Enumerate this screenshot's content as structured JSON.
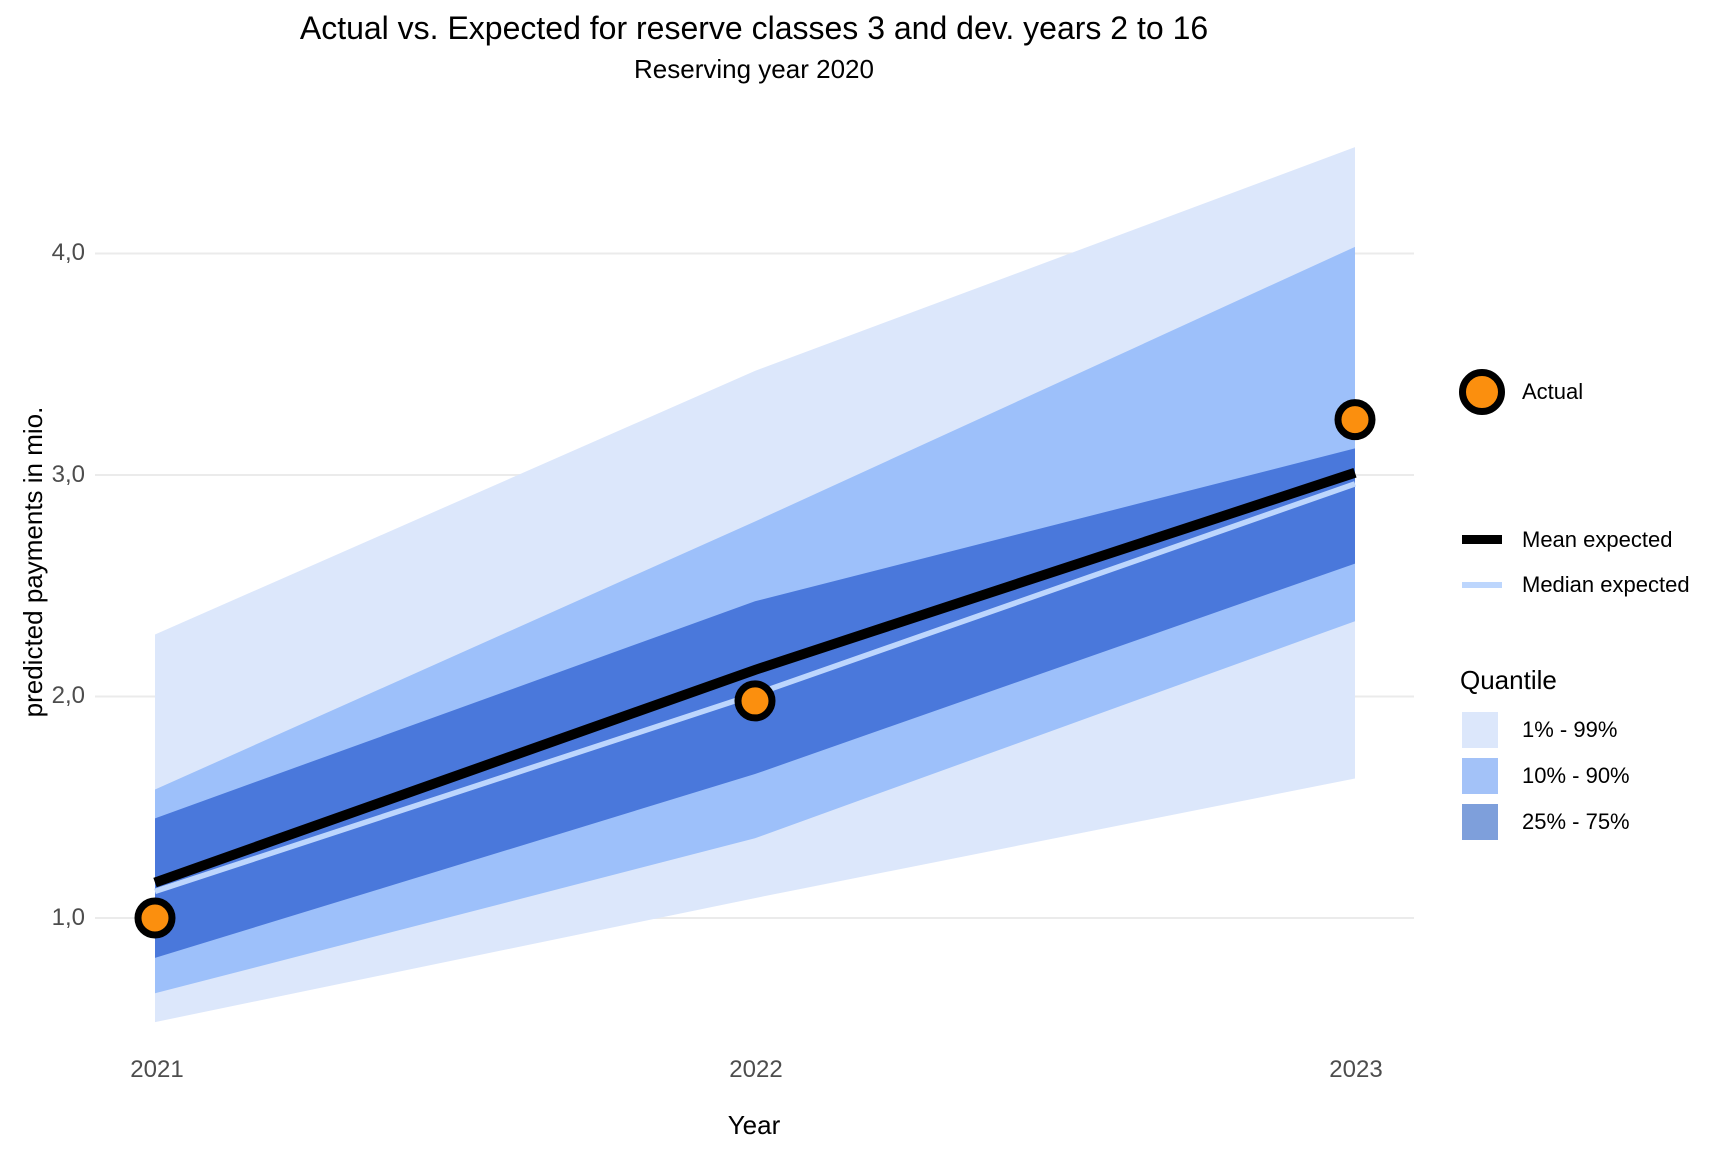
{
  "title": "Actual vs. Expected for reserve classes 3 and dev. years 2 to 16",
  "subtitle": "Reserving year 2020",
  "chart_data": {
    "type": "area",
    "title": "Actual vs. Expected for reserve classes 3 and dev. years 2 to 16",
    "subtitle": "Reserving year 2020",
    "xlabel": "Year",
    "ylabel": "predicted payments in mio.",
    "x": [
      2021,
      2022,
      2023
    ],
    "x_tick_labels": [
      "2021",
      "2022",
      "2023"
    ],
    "y_ticks": [
      1.0,
      2.0,
      3.0,
      4.0
    ],
    "y_tick_labels": [
      "1,0",
      "2,0",
      "3,0",
      "4,0"
    ],
    "ylim": [
      0.45,
      4.55
    ],
    "grid": "horizontal-only",
    "legend_position": "right",
    "bands": [
      {
        "label": "1% - 99%",
        "lower": [
          0.53,
          1.09,
          1.63
        ],
        "upper": [
          2.28,
          3.47,
          4.48
        ],
        "fill": "#DCE7FB",
        "legend_fill": "#DCE7FB"
      },
      {
        "label": "10% - 90%",
        "lower": [
          0.66,
          1.36,
          2.34
        ],
        "upper": [
          1.58,
          2.79,
          4.03
        ],
        "fill": "#9DC0FA",
        "legend_fill": "#A3C2F8"
      },
      {
        "label": "25% - 75%",
        "lower": [
          0.82,
          1.65,
          2.6
        ],
        "upper": [
          1.45,
          2.43,
          3.12
        ],
        "fill": "#4A78DB",
        "legend_fill": "#7E9FDB"
      }
    ],
    "series": [
      {
        "name": "Mean expected",
        "values": [
          1.16,
          2.12,
          3.01
        ],
        "color": "#000000",
        "width": 10
      },
      {
        "name": "Median expected",
        "values": [
          1.12,
          2.01,
          2.96
        ],
        "color": "#BDD6FD",
        "width": 5.5
      }
    ],
    "points": {
      "name": "Actual",
      "values": [
        1.0,
        1.98,
        3.25
      ],
      "fill": "#FB8F0E",
      "stroke": "#000000"
    },
    "grid_color": "#EBEBEB",
    "tick_text_color": "#4D4D4D"
  },
  "legend": {
    "actual_label": "Actual",
    "mean_label": "Mean expected",
    "median_label": "Median expected",
    "quantile_title": "Quantile",
    "quantile_labels": [
      "1% - 99%",
      "10% - 90%",
      "25% - 75%"
    ]
  }
}
